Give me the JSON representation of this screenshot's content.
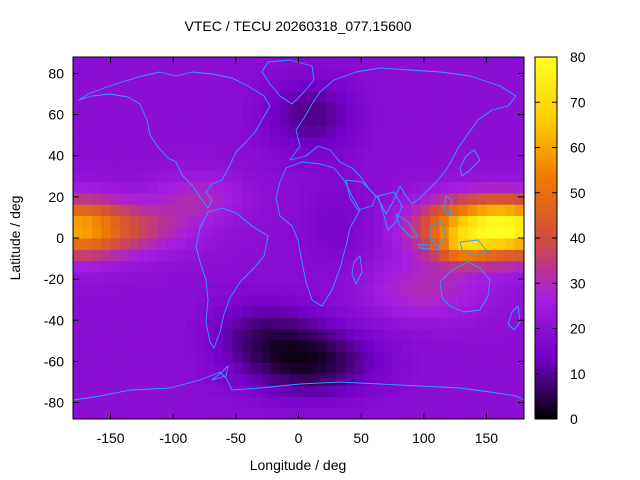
{
  "chart_data": {
    "type": "heatmap",
    "title": "VTEC / TECU 20260318_077.15600",
    "xlabel": "Longitude / deg",
    "ylabel": "Latitude / deg",
    "xlim": [
      -180,
      180
    ],
    "ylim": [
      -88,
      88
    ],
    "x_ticks": [
      -150,
      -100,
      -50,
      0,
      50,
      100,
      150
    ],
    "y_ticks": [
      -80,
      -60,
      -40,
      -20,
      0,
      20,
      40,
      60,
      80
    ],
    "colorbar": {
      "range": [
        0,
        80
      ],
      "ticks": [
        0,
        10,
        20,
        30,
        40,
        50,
        60,
        70,
        80
      ],
      "palette": [
        "#000000",
        "#7400c8",
        "#a51ee0",
        "#d24d3c",
        "#f07a00",
        "#ffd000",
        "#ffff20"
      ]
    },
    "coastline_color": "#2aa0ff",
    "field": {
      "background": 20,
      "features": [
        {
          "lon": 140,
          "lat": 5,
          "slon": 45,
          "slat": 14,
          "amp": 44
        },
        {
          "lon": 130,
          "lat": -5,
          "slon": 18,
          "slat": 6,
          "amp": 14
        },
        {
          "lon": -180,
          "lat": 5,
          "slon": 38,
          "slat": 14,
          "amp": 34
        },
        {
          "lon": 180,
          "lat": 5,
          "slon": 38,
          "slat": 14,
          "amp": 34
        },
        {
          "lon": -135,
          "lat": 5,
          "slon": 50,
          "slat": 13,
          "amp": 14
        },
        {
          "lon": -80,
          "lat": 20,
          "slon": 35,
          "slat": 12,
          "amp": 9
        },
        {
          "lon": 100,
          "lat": -25,
          "slon": 50,
          "slat": 15,
          "amp": 10
        },
        {
          "lon": 10,
          "lat": -60,
          "slon": 55,
          "slat": 18,
          "amp": -16
        },
        {
          "lon": -30,
          "lat": -45,
          "slon": 45,
          "slat": 18,
          "amp": -9
        },
        {
          "lon": 10,
          "lat": 60,
          "slon": 40,
          "slat": 20,
          "amp": -11
        },
        {
          "lon": 30,
          "lat": 5,
          "slon": 30,
          "slat": 25,
          "amp": -5
        }
      ]
    }
  }
}
